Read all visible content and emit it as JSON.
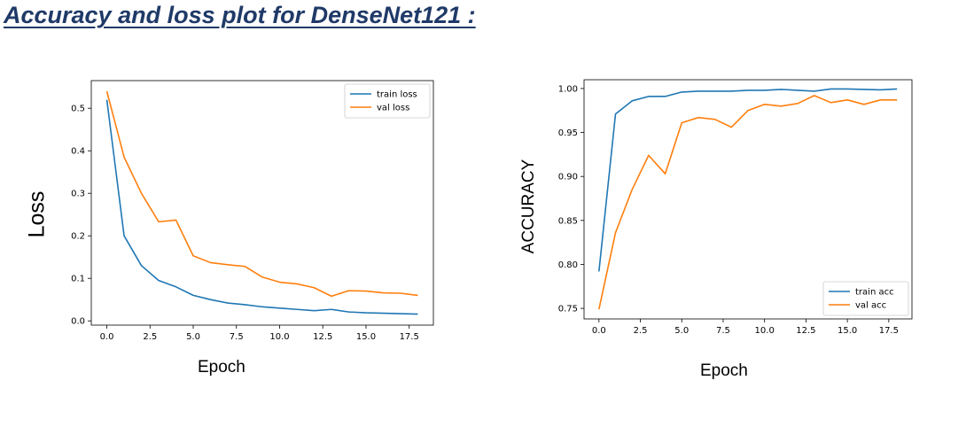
{
  "page": {
    "title": "Accuracy and loss plot for DenseNet121 :"
  },
  "colors": {
    "train": "#1f77b4",
    "val": "#ff7f0e",
    "title": "#1f3a68"
  },
  "chart_data": [
    {
      "type": "line",
      "title": "",
      "xlabel": "Epoch",
      "ylabel": "Loss",
      "xlim": [
        -0.9,
        18.9
      ],
      "ylim": [
        -0.01,
        0.565
      ],
      "xticks": [
        0.0,
        2.5,
        5.0,
        7.5,
        10.0,
        12.5,
        15.0,
        17.5
      ],
      "xtick_labels": [
        "0.0",
        "2.5",
        "5.0",
        "7.5",
        "10.0",
        "12.5",
        "15.0",
        "17.5"
      ],
      "yticks": [
        0.0,
        0.1,
        0.2,
        0.3,
        0.4,
        0.5
      ],
      "ytick_labels": [
        "0.0",
        "0.1",
        "0.2",
        "0.3",
        "0.4",
        "0.5"
      ],
      "grid": false,
      "legend_position": "top-right",
      "x": [
        0,
        1,
        2,
        3,
        4,
        5,
        6,
        7,
        8,
        9,
        10,
        11,
        12,
        13,
        14,
        15,
        16,
        17,
        18
      ],
      "series": [
        {
          "name": "train loss",
          "color": "#1f77b4",
          "values": [
            0.52,
            0.2,
            0.13,
            0.095,
            0.08,
            0.06,
            0.05,
            0.042,
            0.038,
            0.033,
            0.03,
            0.027,
            0.024,
            0.027,
            0.021,
            0.019,
            0.018,
            0.017,
            0.016
          ]
        },
        {
          "name": "val loss",
          "color": "#ff7f0e",
          "values": [
            0.54,
            0.385,
            0.3,
            0.233,
            0.237,
            0.153,
            0.137,
            0.132,
            0.128,
            0.103,
            0.091,
            0.087,
            0.078,
            0.058,
            0.071,
            0.07,
            0.066,
            0.065,
            0.06
          ]
        }
      ]
    },
    {
      "type": "line",
      "title": "",
      "xlabel": "Epoch",
      "ylabel": "ACCURACY",
      "xlim": [
        -0.9,
        18.9
      ],
      "ylim": [
        0.738,
        1.01
      ],
      "xticks": [
        0.0,
        2.5,
        5.0,
        7.5,
        10.0,
        12.5,
        15.0,
        17.5
      ],
      "xtick_labels": [
        "0.0",
        "2.5",
        "5.0",
        "7.5",
        "10.0",
        "12.5",
        "15.0",
        "17.5"
      ],
      "yticks": [
        0.75,
        0.8,
        0.85,
        0.9,
        0.95,
        1.0
      ],
      "ytick_labels": [
        "0.75",
        "0.80",
        "0.85",
        "0.90",
        "0.95",
        "1.00"
      ],
      "grid": false,
      "legend_position": "bottom-right",
      "x": [
        0,
        1,
        2,
        3,
        4,
        5,
        6,
        7,
        8,
        9,
        10,
        11,
        12,
        13,
        14,
        15,
        16,
        17,
        18
      ],
      "series": [
        {
          "name": "train acc",
          "color": "#1f77b4",
          "values": [
            0.792,
            0.971,
            0.986,
            0.991,
            0.991,
            0.996,
            0.997,
            0.997,
            0.997,
            0.998,
            0.998,
            0.999,
            0.998,
            0.997,
            0.9995,
            0.9995,
            0.999,
            0.9985,
            0.9995
          ]
        },
        {
          "name": "val acc",
          "color": "#ff7f0e",
          "values": [
            0.749,
            0.836,
            0.885,
            0.924,
            0.903,
            0.961,
            0.967,
            0.965,
            0.956,
            0.975,
            0.982,
            0.98,
            0.983,
            0.992,
            0.984,
            0.987,
            0.982,
            0.987,
            0.987
          ]
        }
      ]
    }
  ]
}
